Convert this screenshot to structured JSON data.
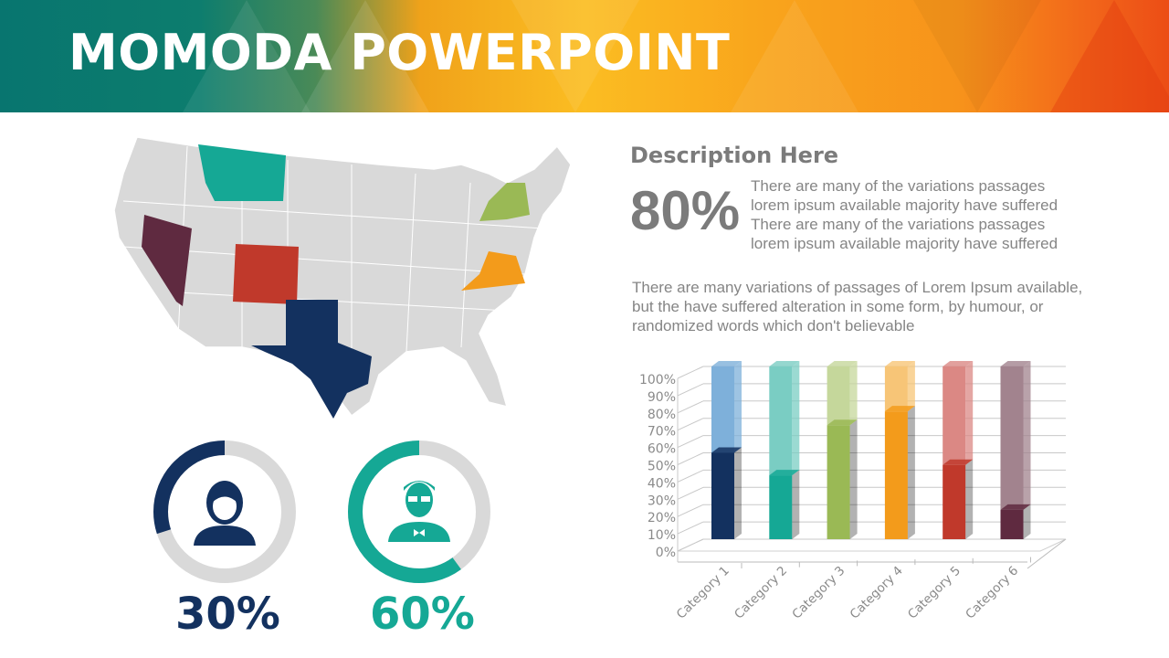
{
  "header": {
    "title": "MOMODA POWERPOINT"
  },
  "description": {
    "heading": "Description Here",
    "big_stat": "80%",
    "side_text": "There are many of the variations passages lorem ipsum available majority have suffered There are many of the variations passages lorem ipsum available majority have suffered",
    "body_text": "There are many variations of passages  of Lorem Ipsum available, but the have suffered alteration in some  form, by humour, or randomized words which  don't believable"
  },
  "donuts": [
    {
      "label": "30%",
      "value": 30,
      "color": "#13315f",
      "icon": "female-user-icon"
    },
    {
      "label": "60%",
      "value": 60,
      "color": "#15a895",
      "icon": "male-user-icon"
    }
  ],
  "map": {
    "highlight_colors": {
      "montana": "#15a895",
      "nevada": "#5f2a40",
      "colorado": "#c0392b",
      "texas": "#13315f",
      "new_york": "#9ab955",
      "virginia": "#f39b1b"
    }
  },
  "chart_data": {
    "type": "bar",
    "stacked_percent": true,
    "three_d": true,
    "categories": [
      "Category 1",
      "Category 2",
      "Category 3",
      "Category 4",
      "Category 5",
      "Category 6"
    ],
    "values": [
      50,
      37,
      66,
      74,
      43,
      17
    ],
    "colors": [
      "#13315f",
      "#15a895",
      "#9ab955",
      "#f39b1b",
      "#c0392b",
      "#5f2a40"
    ],
    "light_colors": [
      "#7eb0da",
      "#7acdc3",
      "#c5d79b",
      "#f7c577",
      "#db8884",
      "#a2838e"
    ],
    "ylim": [
      0,
      100
    ],
    "yticks": [
      "0%",
      "10%",
      "20%",
      "30%",
      "40%",
      "50%",
      "60%",
      "70%",
      "80%",
      "90%",
      "100%"
    ],
    "grid": true
  }
}
